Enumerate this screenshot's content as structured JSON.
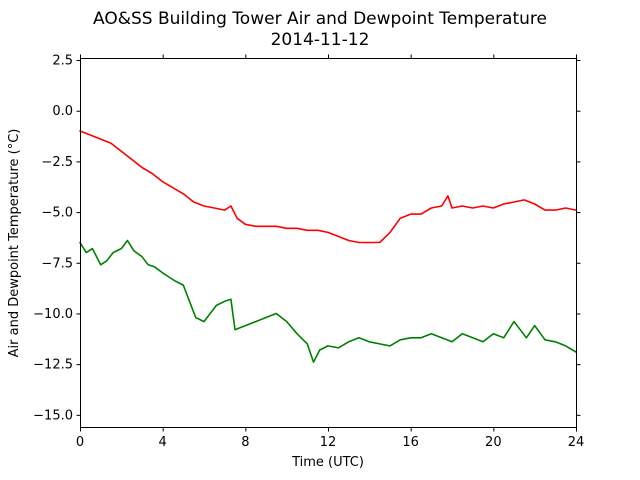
{
  "chart_data": {
    "type": "line",
    "title": "AO&SS Building Tower Air and Dewpoint Temperature",
    "subtitle": "2014-11-12",
    "xlabel": "Time (UTC)",
    "ylabel": "Air and Dewpoint Temperature (°C)",
    "xlim": [
      0,
      24
    ],
    "ylim": [
      -15.6,
      2.6
    ],
    "x_ticks": [
      0,
      4,
      8,
      12,
      16,
      20,
      24
    ],
    "x_tick_labels": [
      "0",
      "4",
      "8",
      "12",
      "16",
      "20",
      "24"
    ],
    "y_ticks": [
      2.5,
      0.0,
      -2.5,
      -5.0,
      -7.5,
      -10.0,
      -12.5,
      -15.0
    ],
    "y_tick_labels": [
      "2.5",
      "0.0",
      "−2.5",
      "−5.0",
      "−7.5",
      "−10.0",
      "−12.5",
      "−15.0"
    ],
    "grid": false,
    "legend": "none",
    "series": [
      {
        "color": "#ff0000",
        "x": [
          0,
          0.5,
          1,
          1.5,
          2,
          2.5,
          3,
          3.5,
          4,
          4.5,
          5,
          5.5,
          6,
          6.5,
          7,
          7.3,
          7.6,
          8,
          8.5,
          9,
          9.5,
          10,
          10.5,
          11,
          11.5,
          12,
          12.5,
          13,
          13.5,
          14,
          14.5,
          15,
          15.5,
          16,
          16.5,
          17,
          17.5,
          17.8,
          18,
          18.5,
          19,
          19.5,
          20,
          20.5,
          21,
          21.5,
          22,
          22.5,
          23,
          23.5,
          24
        ],
        "y": [
          -1.0,
          -1.2,
          -1.4,
          -1.6,
          -2.0,
          -2.4,
          -2.8,
          -3.1,
          -3.5,
          -3.8,
          -4.1,
          -4.5,
          -4.7,
          -4.8,
          -4.9,
          -4.7,
          -5.3,
          -5.6,
          -5.7,
          -5.7,
          -5.7,
          -5.8,
          -5.8,
          -5.9,
          -5.9,
          -6.0,
          -6.2,
          -6.4,
          -6.5,
          -6.5,
          -6.5,
          -6.0,
          -5.3,
          -5.1,
          -5.1,
          -4.8,
          -4.7,
          -4.2,
          -4.8,
          -4.7,
          -4.8,
          -4.7,
          -4.8,
          -4.6,
          -4.5,
          -4.4,
          -4.6,
          -4.9,
          -4.9,
          -4.8,
          -4.9
        ]
      },
      {
        "color": "#008000",
        "x": [
          0,
          0.3,
          0.6,
          1,
          1.3,
          1.6,
          2,
          2.3,
          2.6,
          3,
          3.3,
          3.6,
          4,
          4.3,
          4.6,
          5,
          5.3,
          5.6,
          6,
          6.3,
          6.6,
          7,
          7.3,
          7.5,
          8,
          8.5,
          9,
          9.5,
          10,
          10.5,
          11,
          11.3,
          11.6,
          12,
          12.5,
          13,
          13.5,
          14,
          14.5,
          15,
          15.5,
          16,
          16.5,
          17,
          17.5,
          18,
          18.5,
          19,
          19.5,
          20,
          20.5,
          21,
          21.3,
          21.6,
          22,
          22.5,
          23,
          23.5,
          24
        ],
        "y": [
          -6.5,
          -7.0,
          -6.8,
          -7.6,
          -7.4,
          -7.0,
          -6.8,
          -6.4,
          -6.9,
          -7.2,
          -7.6,
          -7.7,
          -8.0,
          -8.2,
          -8.4,
          -8.6,
          -9.4,
          -10.2,
          -10.4,
          -10.0,
          -9.6,
          -9.4,
          -9.3,
          -10.8,
          -10.6,
          -10.4,
          -10.2,
          -10.0,
          -10.4,
          -11.0,
          -11.5,
          -12.4,
          -11.8,
          -11.6,
          -11.7,
          -11.4,
          -11.2,
          -11.4,
          -11.5,
          -11.6,
          -11.3,
          -11.2,
          -11.2,
          -11.0,
          -11.2,
          -11.4,
          -11.0,
          -11.2,
          -11.4,
          -11.0,
          -11.2,
          -10.4,
          -10.8,
          -11.2,
          -10.6,
          -11.3,
          -11.4,
          -11.6,
          -11.9
        ]
      }
    ]
  }
}
